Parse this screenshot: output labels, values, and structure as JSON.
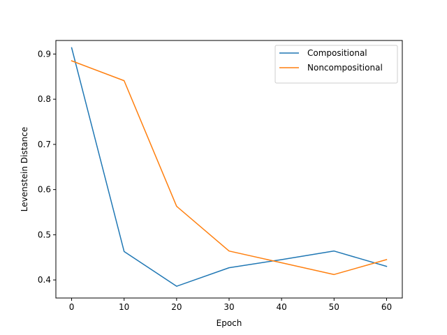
{
  "chart_data": {
    "type": "line",
    "title": "",
    "xlabel": "Epoch",
    "ylabel": "Levenstein Distance",
    "x": [
      0,
      10,
      20,
      30,
      40,
      50,
      60
    ],
    "xlim": [
      -3,
      63
    ],
    "ylim": [
      0.36,
      0.93
    ],
    "xticks": [
      0,
      10,
      20,
      30,
      40,
      50,
      60
    ],
    "yticks": [
      0.4,
      0.5,
      0.6,
      0.7,
      0.8,
      0.9
    ],
    "grid": false,
    "legend_position": "top-right",
    "series": [
      {
        "name": "Compositional",
        "color": "#1f77b4",
        "values": [
          0.914,
          0.463,
          0.386,
          0.427,
          0.445,
          0.464,
          0.43
        ]
      },
      {
        "name": "Noncompositional",
        "color": "#ff7f0e",
        "values": [
          0.885,
          0.841,
          0.563,
          0.464,
          0.438,
          0.412,
          0.445
        ]
      }
    ]
  }
}
